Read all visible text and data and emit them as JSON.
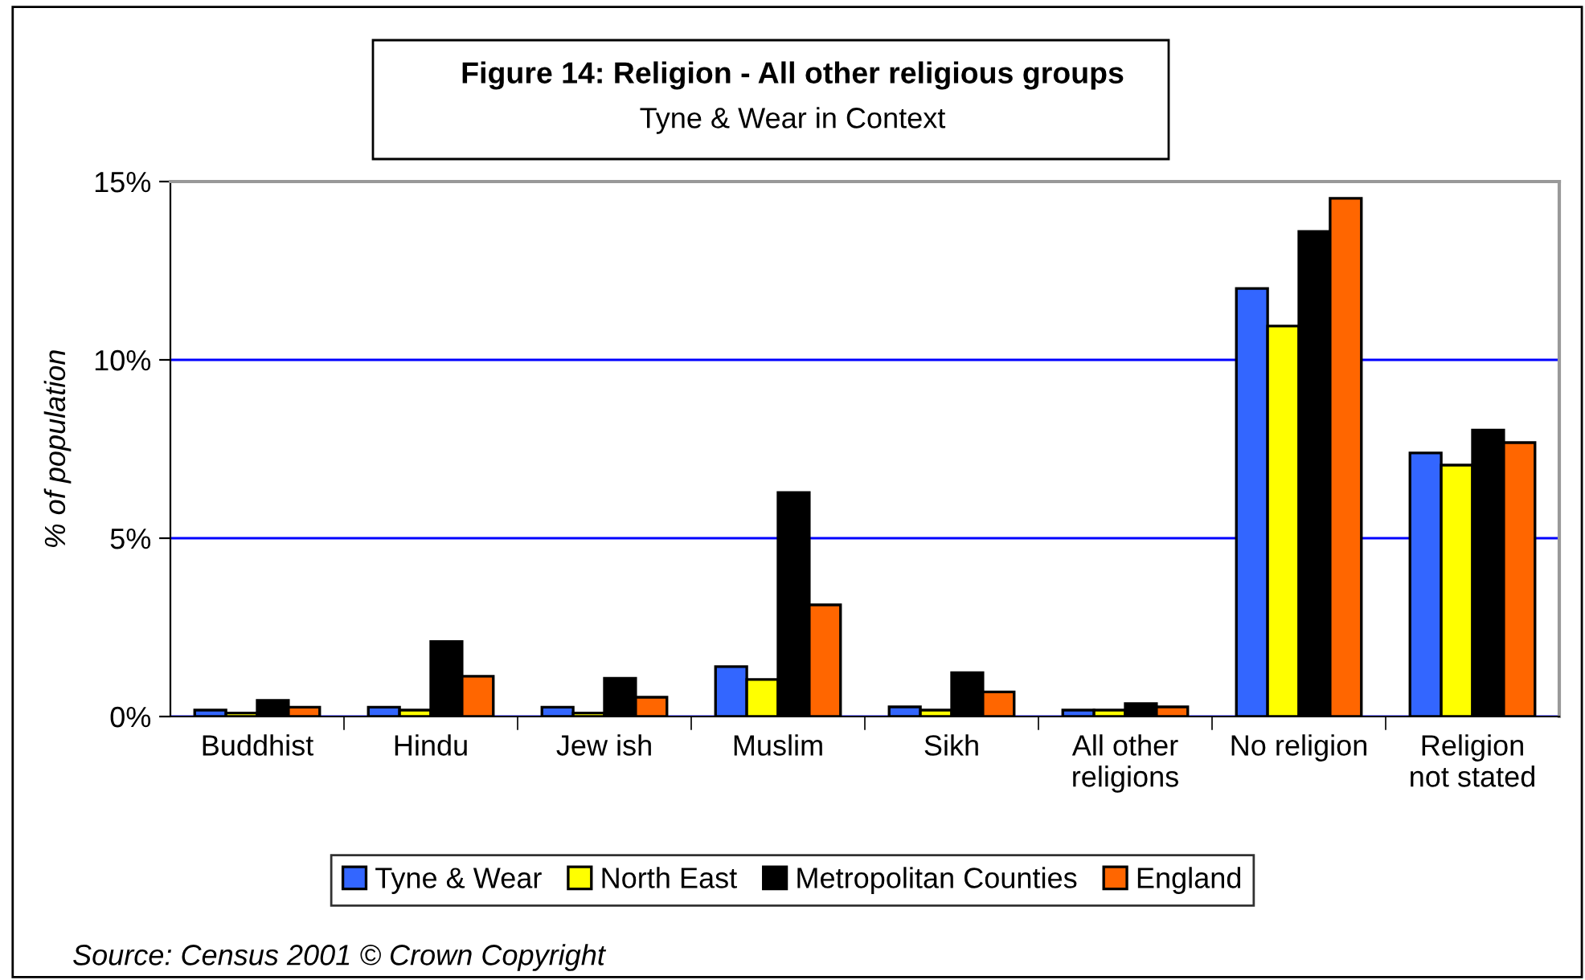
{
  "chart_data": {
    "type": "bar",
    "title": "Figure 14: Religion - All other religious groups",
    "subtitle": "Tyne & Wear in Context",
    "ylabel": "% of population",
    "categories": [
      "Buddhist",
      "Hindu",
      "Jew ish",
      "Muslim",
      "Sikh",
      "All other\nreligions",
      "No religion",
      "Religion\nnot stated"
    ],
    "series": [
      {
        "name": "Tyne & Wear",
        "color": "#3366ff",
        "values": [
          0.18,
          0.26,
          0.26,
          1.4,
          0.27,
          0.18,
          12.0,
          7.39
        ]
      },
      {
        "name": "North East",
        "color": "#ffff00",
        "values": [
          0.1,
          0.18,
          0.1,
          1.04,
          0.18,
          0.18,
          10.95,
          7.05
        ]
      },
      {
        "name": "Metropolitan Counties",
        "color": "#000000",
        "values": [
          0.45,
          2.1,
          1.07,
          6.28,
          1.23,
          0.36,
          13.6,
          8.03
        ]
      },
      {
        "name": "England",
        "color": "#ff6600",
        "values": [
          0.26,
          1.13,
          0.54,
          3.13,
          0.69,
          0.27,
          14.53,
          7.68
        ]
      }
    ],
    "ylim": [
      0,
      15
    ],
    "yticks": [
      {
        "value": 0,
        "label": "0%"
      },
      {
        "value": 5,
        "label": "5%"
      },
      {
        "value": 10,
        "label": "10%"
      },
      {
        "value": 15,
        "label": "15%"
      }
    ],
    "grid": "y",
    "legend": "bottom",
    "annotations": [
      "Source: Census 2001 © Crown Copyright"
    ]
  }
}
